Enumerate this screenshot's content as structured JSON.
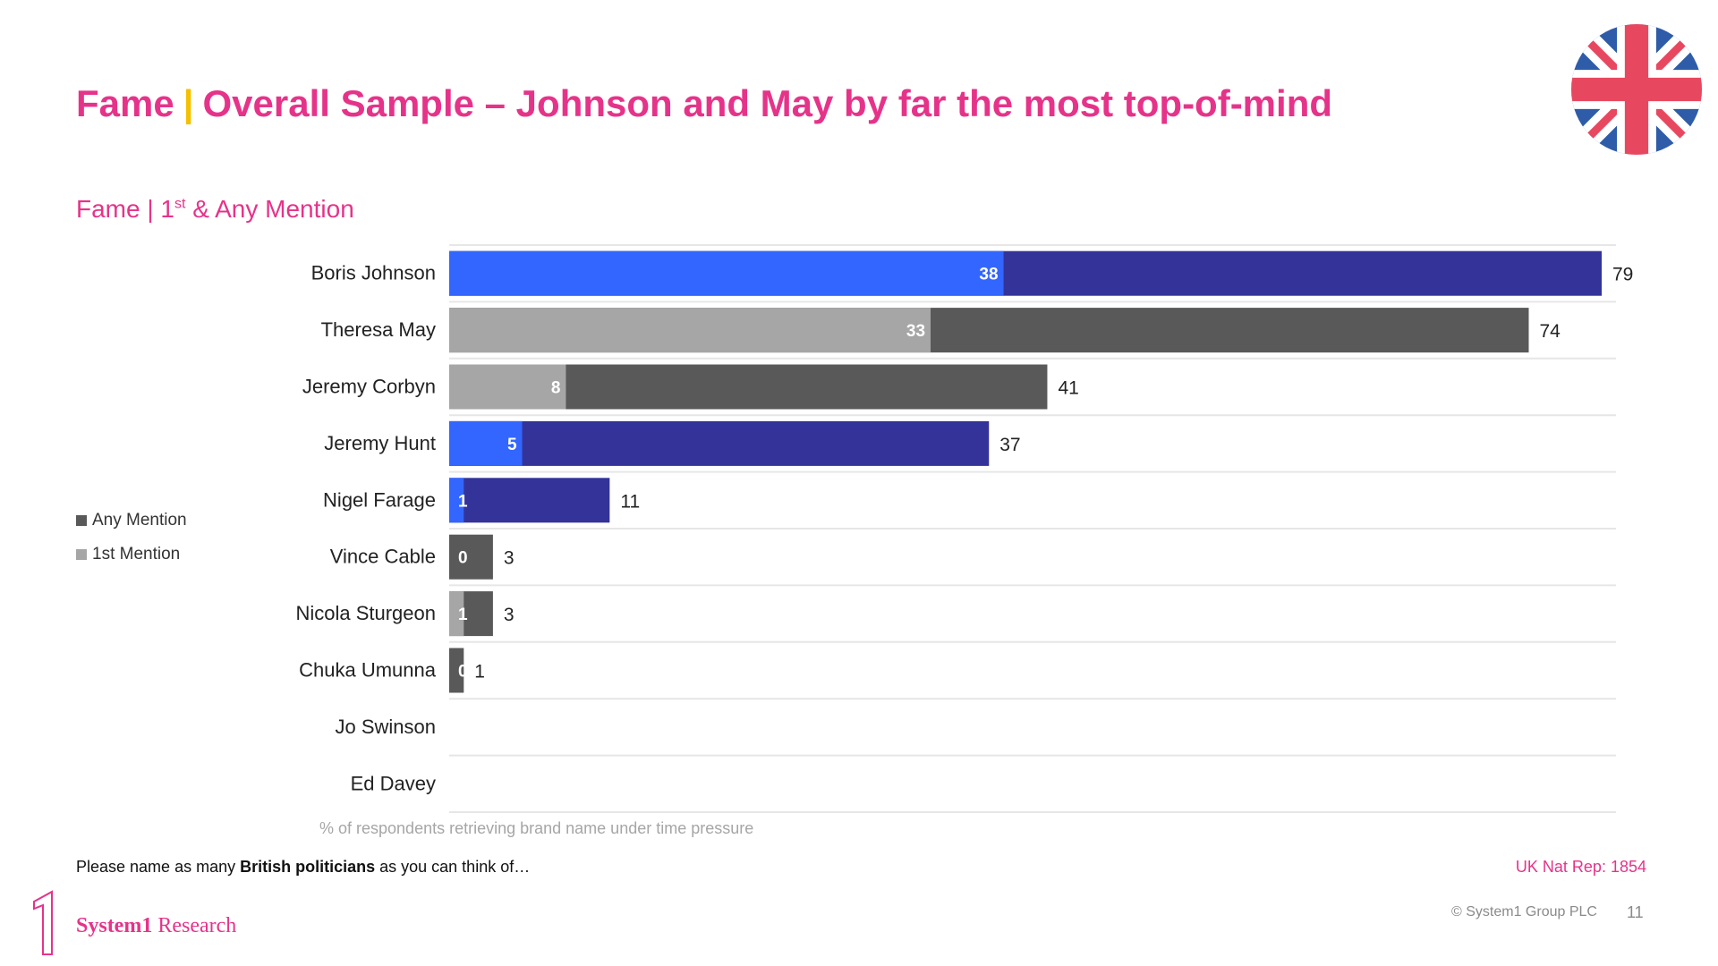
{
  "header": {
    "title_left": "Fame",
    "title_separator": "|",
    "title_right": "Overall Sample – Johnson and May by far the most top-of-mind",
    "subtitle_pre": "Fame | 1",
    "subtitle_sup": "st",
    "subtitle_post": " & Any Mention",
    "flag_icon": "union-jack-flag"
  },
  "legend": {
    "any_mention": "Any Mention",
    "first_mention": "1st Mention"
  },
  "chart_data": {
    "type": "bar",
    "orientation": "horizontal",
    "stacked_overlay": true,
    "categories": [
      "Boris Johnson",
      "Theresa May",
      "Jeremy Corbyn",
      "Jeremy Hunt",
      "Nigel Farage",
      "Vince Cable",
      "Nicola Sturgeon",
      "Chuka Umunna",
      "Jo Swinson",
      "Ed Davey"
    ],
    "series": [
      {
        "name": "1st Mention",
        "values": [
          38,
          33,
          8,
          5,
          1,
          0,
          1,
          0,
          0,
          0
        ]
      },
      {
        "name": "Any Mention",
        "values": [
          79,
          74,
          41,
          37,
          11,
          3,
          3,
          1,
          0,
          0
        ]
      }
    ],
    "row_party_colors": {
      "conservative": {
        "first": "#3366FF",
        "any": "#333399"
      },
      "other": {
        "first": "#A6A6A6",
        "any": "#595959"
      }
    },
    "row_color_group": [
      "conservative",
      "other",
      "other",
      "conservative",
      "conservative",
      "other",
      "other",
      "other",
      "other",
      "other"
    ],
    "xlabel": "% of respondents retrieving brand name under time pressure",
    "xlim": [
      0,
      80
    ],
    "grid": "horizontal row separators",
    "legend_position": "left"
  },
  "footer": {
    "question_pre": "Please name as many ",
    "question_bold": "British politicians",
    "question_post": " as you can think of…",
    "sample": "UK Nat Rep: 1854",
    "copyright": "© System1 Group PLC",
    "page_number": "11",
    "logo_bold": "System1",
    "logo_rest": " Research"
  },
  "colors": {
    "brand_pink": "#E6338A",
    "separator_yellow": "#F5C000"
  }
}
